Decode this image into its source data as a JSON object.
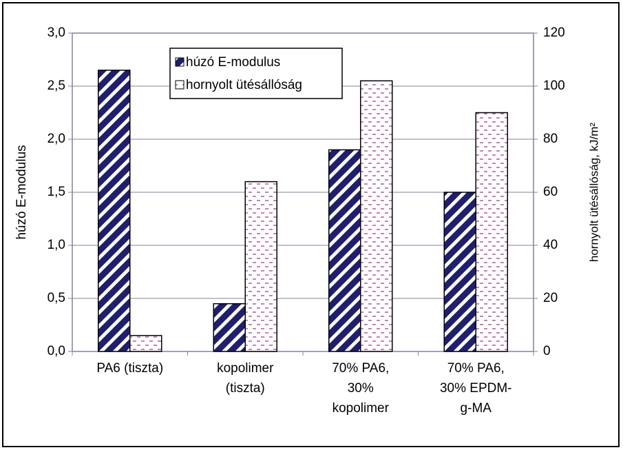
{
  "chart_data": {
    "type": "bar",
    "categories": [
      "PA6 (tiszta)",
      "kopolimer (tiszta)",
      "70% PA6, 30% kopolimer",
      "70% PA6, 30% EPDM-g-MA"
    ],
    "series": [
      {
        "name": "húzó E-modulus",
        "color": "#1f1f6e",
        "values": [
          2.65,
          0.45,
          1.9,
          1.5
        ]
      },
      {
        "name": "hornyolt ütésállóság",
        "color": "#a3418f",
        "axis": "y2",
        "values": [
          6,
          64,
          102,
          90
        ]
      }
    ],
    "y_label": "húzó E-modulus",
    "y2_label": "hornyolt ütésállóság, kJ/m²",
    "ylim": [
      0,
      3
    ],
    "yticks": [
      {
        "value": 0,
        "label": "0,0"
      },
      {
        "value": 0.5,
        "label": "0,5"
      },
      {
        "value": 1,
        "label": "1,0"
      },
      {
        "value": 1.5,
        "label": "1,5"
      },
      {
        "value": 2,
        "label": "2,0"
      },
      {
        "value": 2.5,
        "label": "2,5"
      },
      {
        "value": 3,
        "label": "3,0"
      }
    ],
    "y2lim": [
      0,
      120
    ],
    "y2ticks": [
      0,
      20,
      40,
      60,
      80,
      100,
      120
    ],
    "grid": true,
    "legend_position": "top"
  }
}
